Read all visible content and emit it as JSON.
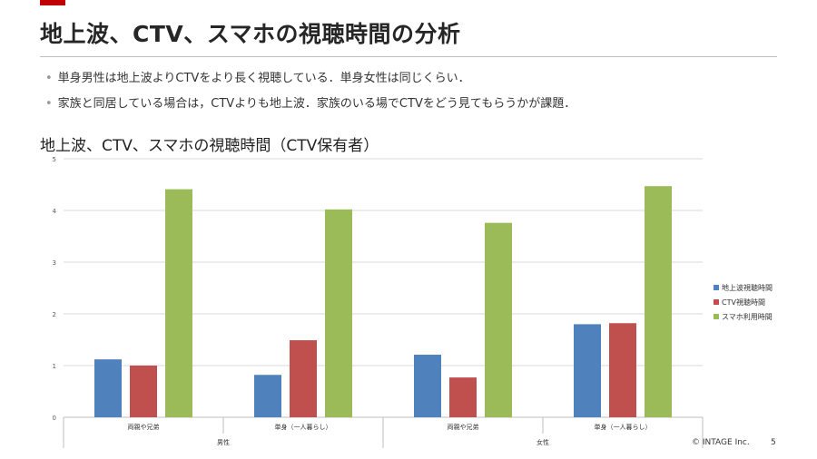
{
  "slide": {
    "title": "地上波、CTV、スマホの視聴時間の分析",
    "bullets": [
      "単身男性は地上波よりCTVをより長く視聴している．単身女性は同じくらい．",
      "家族と同居している場合は，CTVよりも地上波．家族のいる場でCTVをどう見てもらうかが課題．"
    ],
    "bullet_marker": "•",
    "copyright": "© INTAGE Inc.",
    "page_number": "5"
  },
  "chart_data": {
    "type": "bar",
    "title": "地上波、CTV、スマホの視聴時間（CTV保有者）",
    "categories": [
      "両親や兄弟",
      "単身（一人暮らし）",
      "両親や兄弟",
      "単身（一人暮らし）"
    ],
    "groups": [
      {
        "label": "男性",
        "categories": [
          "両親や兄弟",
          "単身（一人暮らし）"
        ]
      },
      {
        "label": "女性",
        "categories": [
          "両親や兄弟",
          "単身（一人暮らし）"
        ]
      }
    ],
    "series": [
      {
        "name": "地上波視聴時間",
        "color": "#4f81bd",
        "values": [
          1.12,
          0.82,
          1.21,
          1.8
        ]
      },
      {
        "name": "CTV視聴時間",
        "color": "#c0504d",
        "values": [
          1.0,
          1.49,
          0.77,
          1.82
        ]
      },
      {
        "name": "スマホ利用時間",
        "color": "#9bbb59",
        "values": [
          4.41,
          4.02,
          3.76,
          4.47
        ]
      }
    ],
    "ylim": [
      0,
      5
    ],
    "yticks": [
      "0",
      "1",
      "2",
      "3",
      "4",
      "5"
    ],
    "grid": true,
    "legend": "right"
  }
}
